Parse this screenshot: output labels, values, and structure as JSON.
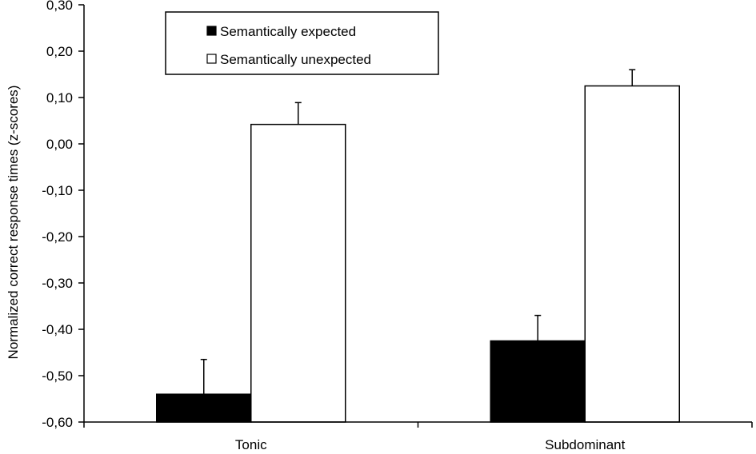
{
  "chart_data": {
    "type": "bar",
    "ylabel": "Normalized correct response times (z-scores)",
    "xlabel": "",
    "ylim": [
      -0.6,
      0.3
    ],
    "yticks": [
      0.3,
      0.2,
      0.1,
      0.0,
      -0.1,
      -0.2,
      -0.3,
      -0.4,
      -0.5,
      -0.6
    ],
    "ytick_labels": [
      "0,30",
      "0,20",
      "0,10",
      "0,00",
      "-0,10",
      "-0,20",
      "-0,30",
      "-0,40",
      "-0,50",
      "-0,60"
    ],
    "categories": [
      "Tonic",
      "Subdominant"
    ],
    "series": [
      {
        "name": "Semantically expected",
        "color": "#000000",
        "values": [
          -0.54,
          -0.425
        ],
        "errors": [
          0.075,
          0.055
        ]
      },
      {
        "name": "Semantically unexpected",
        "color": "#ffffff",
        "values": [
          0.042,
          0.125
        ],
        "errors": [
          0.047,
          0.035
        ]
      }
    ],
    "grid": false,
    "legend_position": "top-left",
    "baseline": -0.6
  }
}
